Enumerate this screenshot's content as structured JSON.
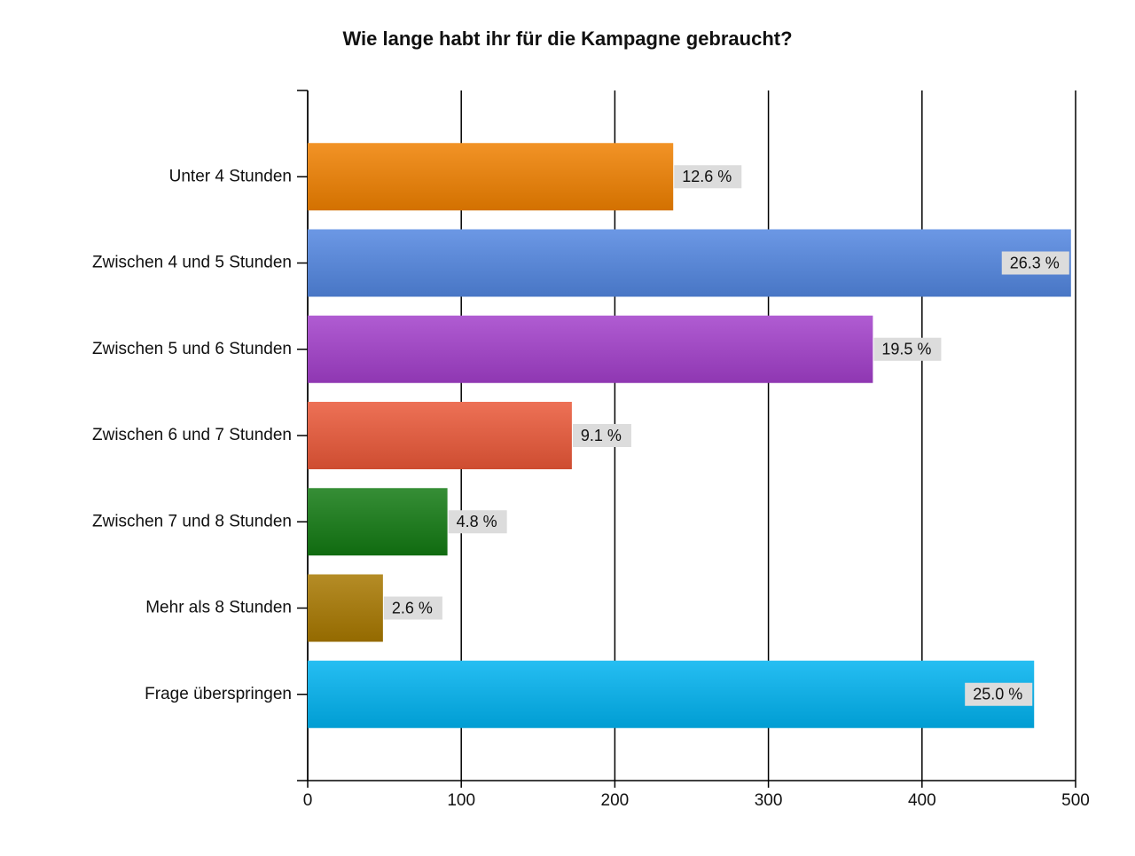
{
  "chart_data": {
    "type": "bar",
    "orientation": "horizontal",
    "title": "Wie lange habt ihr für die Kampagne gebraucht?",
    "categories": [
      "Unter 4 Stunden",
      "Zwischen 4 und 5 Stunden",
      "Zwischen 5 und 6 Stunden",
      "Zwischen 6 und 7 Stunden",
      "Zwischen 7 und 8 Stunden",
      "Mehr als 8 Stunden",
      "Frage überspringen"
    ],
    "values": [
      238,
      497,
      368,
      172,
      91,
      49,
      473
    ],
    "colors": [
      "#f08000",
      "#5286e0",
      "#a23fca",
      "#ea5838",
      "#127a12",
      "#a87800",
      "#00b2f0"
    ],
    "percentages": [
      12.6,
      26.3,
      19.5,
      9.1,
      4.8,
      2.6,
      25.0
    ],
    "percentage_labels": [
      "12.6 %",
      "26.3 %",
      "19.5 %",
      "9.1 %",
      "4.8 %",
      "2.6 %",
      "25.0 %"
    ],
    "xlim": [
      0,
      500
    ],
    "xticks": [
      0,
      100,
      200,
      300,
      400,
      500
    ],
    "grid": true
  }
}
